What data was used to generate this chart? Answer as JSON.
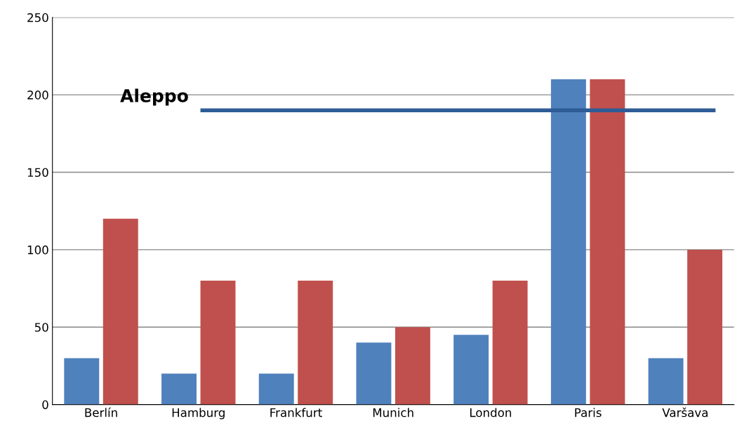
{
  "chart_data": {
    "type": "bar",
    "categories": [
      "Berlín",
      "Hamburg",
      "Frankfurt",
      "Munich",
      "London",
      "Paris",
      "Varšava"
    ],
    "series": [
      {
        "color": "#4f81bd",
        "values": [
          30,
          20,
          20,
          40,
          45,
          210,
          30
        ]
      },
      {
        "color": "#c0504d",
        "values": [
          120,
          80,
          80,
          50,
          80,
          210,
          100
        ]
      }
    ],
    "ylim": [
      0,
      250
    ],
    "yticks": [
      0,
      50,
      100,
      150,
      200,
      250
    ],
    "grid": "y",
    "ref_lines": [
      {
        "axis": "y",
        "value": 190,
        "label": "Aleppo",
        "color": "#2e5c96"
      }
    ]
  }
}
